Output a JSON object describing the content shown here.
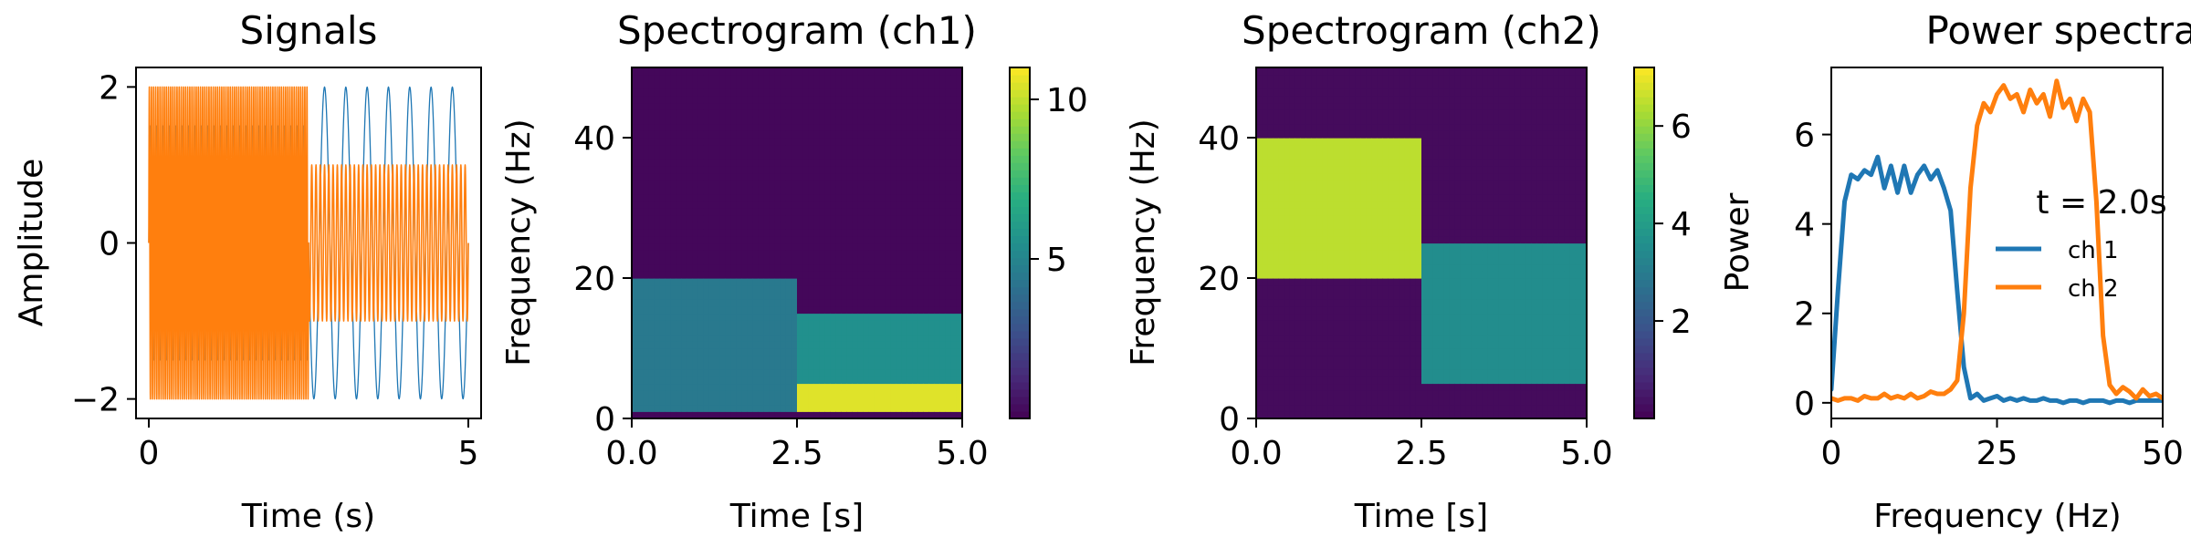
{
  "figure": {
    "background": "#ffffff",
    "colors": {
      "ch1": "#1f77b4",
      "ch2": "#ff7f0e"
    }
  },
  "chart_data": [
    {
      "type": "line",
      "title": "Signals",
      "xlabel": "Time (s)",
      "ylabel": "Amplitude",
      "xlim": [
        -0.2,
        5.2
      ],
      "ylim": [
        -2.25,
        2.25
      ],
      "xticks": [
        0,
        5
      ],
      "xtick_labels": [
        "0",
        "5"
      ],
      "yticks": [
        -2,
        0,
        2
      ],
      "ytick_labels": [
        "−2",
        "0",
        "2"
      ],
      "series": [
        {
          "segments": [
            {
              "t_start": 0,
              "t_end": 2.5,
              "amplitude": 1.5,
              "freq_hz": 10
            },
            {
              "t_start": 2.5,
              "t_end": 5,
              "amplitude": 2.0,
              "freq_hz": 3
            }
          ],
          "color": "#1f77b4"
        },
        {
          "segments": [
            {
              "t_start": 0,
              "t_end": 2.5,
              "amplitude": 2.0,
              "freq_hz": 30
            },
            {
              "t_start": 2.5,
              "t_end": 5,
              "amplitude": 1.0,
              "freq_hz": 15
            }
          ],
          "color": "#ff7f0e"
        }
      ]
    },
    {
      "type": "heatmap",
      "title": "Spectrogram (ch1)",
      "xlabel": "Time [s]",
      "ylabel": "Frequency (Hz)",
      "xlim": [
        0,
        5
      ],
      "ylim": [
        0,
        50
      ],
      "xticks": [
        0.0,
        2.5,
        5.0
      ],
      "xtick_labels": [
        "0.0",
        "2.5",
        "5.0"
      ],
      "yticks": [
        0,
        20,
        40
      ],
      "ytick_labels": [
        "0",
        "20",
        "40"
      ],
      "colormap": "viridis",
      "colorbar": {
        "vmin": 0,
        "vmax": 11,
        "ticks": [
          5,
          10
        ],
        "tick_labels": [
          "5",
          "10"
        ]
      },
      "regions": [
        {
          "t": [
            0.0,
            2.5
          ],
          "f": [
            1,
            20
          ],
          "value": 4.5
        },
        {
          "t": [
            2.5,
            5.0
          ],
          "f": [
            5,
            15
          ],
          "value": 5.5
        },
        {
          "t": [
            2.5,
            5.0
          ],
          "f": [
            1,
            5
          ],
          "value": 10.5
        }
      ]
    },
    {
      "type": "heatmap",
      "title": "Spectrogram (ch2)",
      "xlabel": "Time [s]",
      "ylabel": "Frequency (Hz)",
      "xlim": [
        0,
        5
      ],
      "ylim": [
        0,
        50
      ],
      "xticks": [
        0.0,
        2.5,
        5.0
      ],
      "xtick_labels": [
        "0.0",
        "2.5",
        "5.0"
      ],
      "yticks": [
        0,
        20,
        40
      ],
      "ytick_labels": [
        "0",
        "20",
        "40"
      ],
      "colormap": "viridis",
      "colorbar": {
        "vmin": 0,
        "vmax": 7.2,
        "ticks": [
          2,
          4,
          6
        ],
        "tick_labels": [
          "2",
          "4",
          "6"
        ]
      },
      "regions": [
        {
          "t": [
            0.0,
            2.5
          ],
          "f": [
            20,
            40
          ],
          "value": 6.5
        },
        {
          "t": [
            2.5,
            5.0
          ],
          "f": [
            5,
            25
          ],
          "value": 3.5
        }
      ]
    },
    {
      "type": "line",
      "title": "Power spectral",
      "xlabel": "Frequency (Hz)",
      "ylabel": "Power",
      "xlim": [
        0,
        50
      ],
      "ylim": [
        -0.35,
        7.5
      ],
      "xticks": [
        0,
        25,
        50
      ],
      "xtick_labels": [
        "0",
        "25",
        "50"
      ],
      "yticks": [
        0,
        2,
        4,
        6
      ],
      "ytick_labels": [
        "0",
        "2",
        "4",
        "6"
      ],
      "legend": {
        "title": "t = 2.0s",
        "placement": "center-right"
      },
      "series": [
        {
          "name": "ch 1",
          "color": "#1f77b4",
          "x": [
            0,
            1,
            2,
            3,
            4,
            5,
            6,
            7,
            8,
            9,
            10,
            11,
            12,
            13,
            14,
            15,
            16,
            17,
            18,
            19,
            20,
            21,
            22,
            23,
            24,
            25,
            26,
            27,
            28,
            29,
            30,
            31,
            32,
            33,
            34,
            35,
            36,
            37,
            38,
            39,
            40,
            41,
            42,
            43,
            44,
            45,
            46,
            47,
            48,
            49,
            50
          ],
          "y": [
            0.3,
            2.5,
            4.5,
            5.1,
            5.0,
            5.2,
            5.1,
            5.5,
            4.8,
            5.3,
            4.7,
            5.3,
            4.7,
            5.1,
            5.3,
            5.0,
            5.2,
            4.8,
            4.3,
            2.5,
            0.8,
            0.1,
            0.2,
            0.05,
            0.1,
            0.15,
            0.05,
            0.1,
            0.05,
            0.1,
            0.05,
            0.05,
            0.1,
            0.05,
            0.05,
            0.0,
            0.05,
            0.05,
            0.0,
            0.05,
            0.05,
            0.05,
            0.0,
            0.05,
            0.05,
            0.0,
            0.05,
            0.05,
            0.05,
            0.05,
            0.05
          ]
        },
        {
          "name": "ch 2",
          "color": "#ff7f0e",
          "x": [
            0,
            1,
            2,
            3,
            4,
            5,
            6,
            7,
            8,
            9,
            10,
            11,
            12,
            13,
            14,
            15,
            16,
            17,
            18,
            19,
            20,
            21,
            22,
            23,
            24,
            25,
            26,
            27,
            28,
            29,
            30,
            31,
            32,
            33,
            34,
            35,
            36,
            37,
            38,
            39,
            40,
            41,
            42,
            43,
            44,
            45,
            46,
            47,
            48,
            49,
            50
          ],
          "y": [
            0.1,
            0.05,
            0.1,
            0.1,
            0.05,
            0.15,
            0.1,
            0.1,
            0.2,
            0.1,
            0.15,
            0.1,
            0.2,
            0.1,
            0.15,
            0.25,
            0.2,
            0.2,
            0.3,
            0.5,
            2.0,
            4.8,
            6.2,
            6.7,
            6.5,
            6.9,
            7.1,
            6.8,
            6.9,
            6.5,
            7.0,
            6.7,
            6.9,
            6.4,
            7.2,
            6.6,
            6.8,
            6.3,
            6.8,
            6.5,
            4.5,
            1.5,
            0.4,
            0.2,
            0.35,
            0.25,
            0.1,
            0.3,
            0.15,
            0.2,
            0.1
          ]
        }
      ]
    }
  ]
}
